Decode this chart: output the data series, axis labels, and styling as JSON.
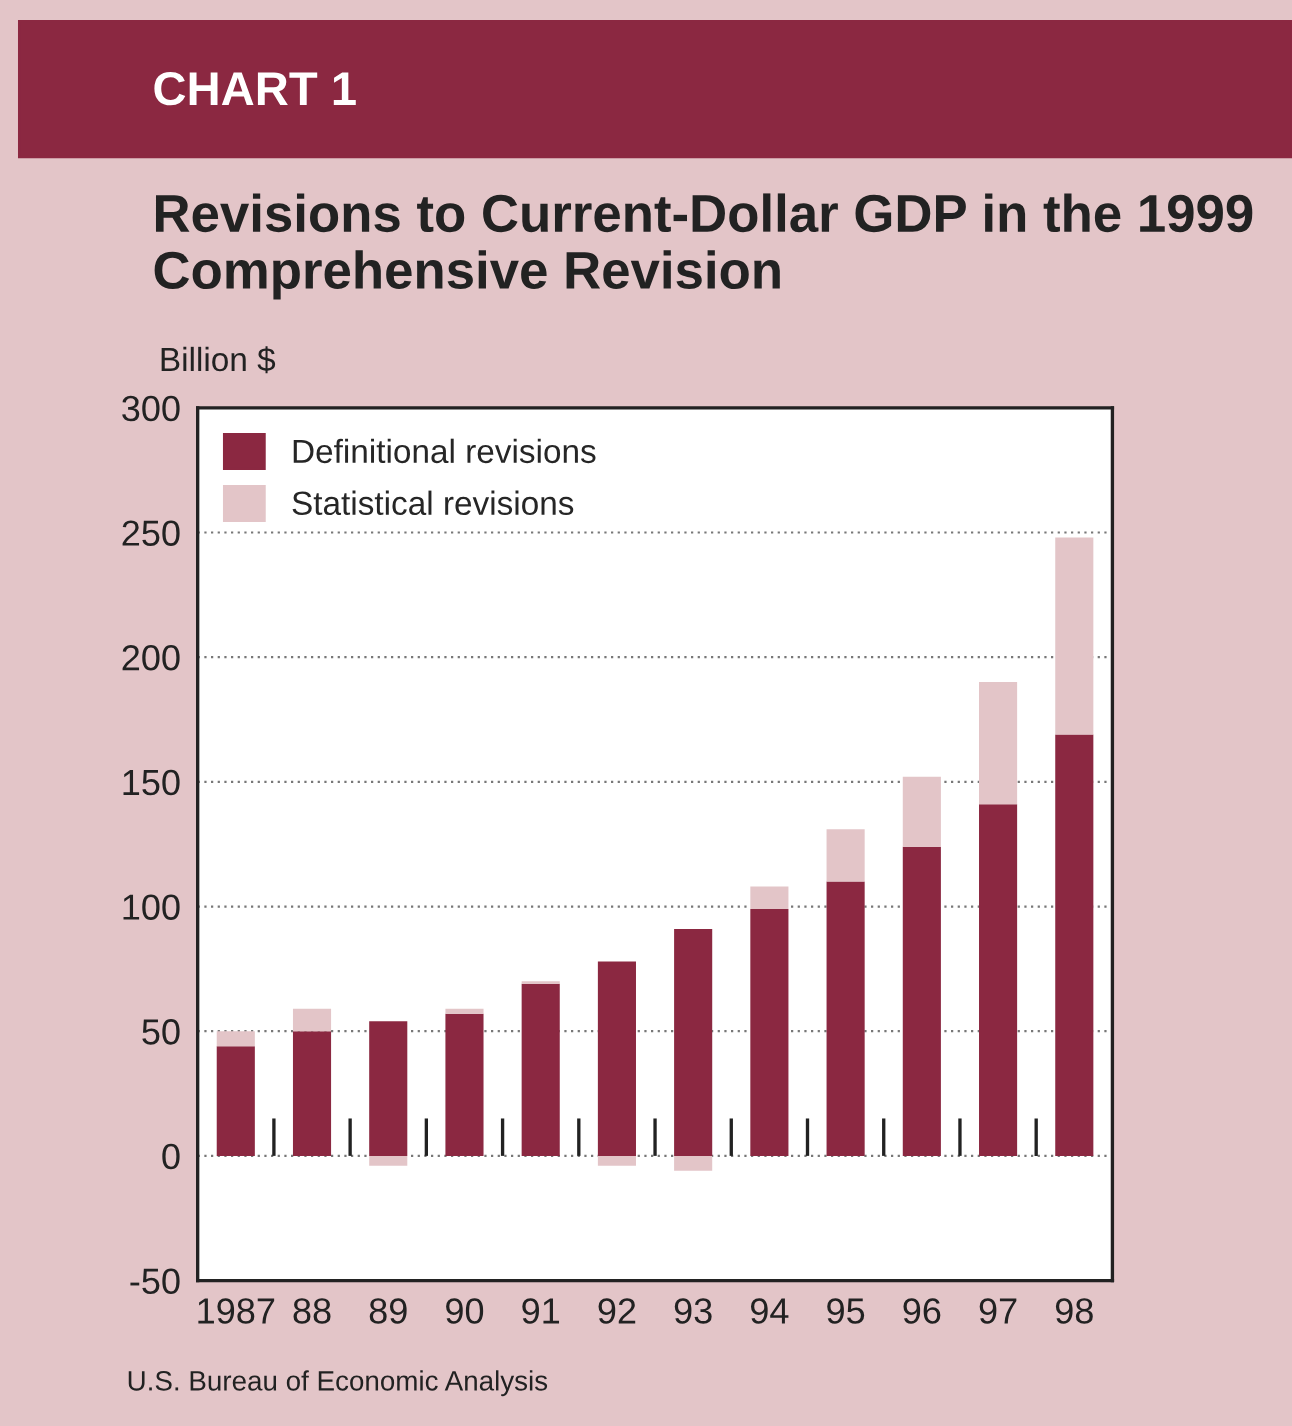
{
  "chart_data": {
    "type": "bar",
    "title": "Revisions to Current-Dollar GDP in the 1999 Comprehensive Revision",
    "ylabel": "Billion $",
    "annotations": [
      "CHART 1",
      "U.S. Bureau of Economic Analysis"
    ],
    "categories": [
      "1987",
      "88",
      "89",
      "90",
      "91",
      "92",
      "93",
      "94",
      "95",
      "96",
      "97",
      "98"
    ],
    "stacked": true,
    "series": [
      {
        "name": "Definitional revisions",
        "color": "#8b2841",
        "values": [
          44,
          50,
          54,
          57,
          69,
          78,
          91,
          99,
          110,
          124,
          141,
          169
        ]
      },
      {
        "name": "Statistical revisions",
        "color": "#e3c5c8",
        "values": [
          6,
          9,
          -4,
          2,
          1,
          -4,
          -6,
          9,
          21,
          28,
          49,
          79
        ]
      }
    ],
    "ylim": [
      -50,
      300
    ],
    "yticks": [
      -50,
      0,
      50,
      100,
      150,
      200,
      250,
      300
    ],
    "grid": "y",
    "legend": "top left"
  }
}
